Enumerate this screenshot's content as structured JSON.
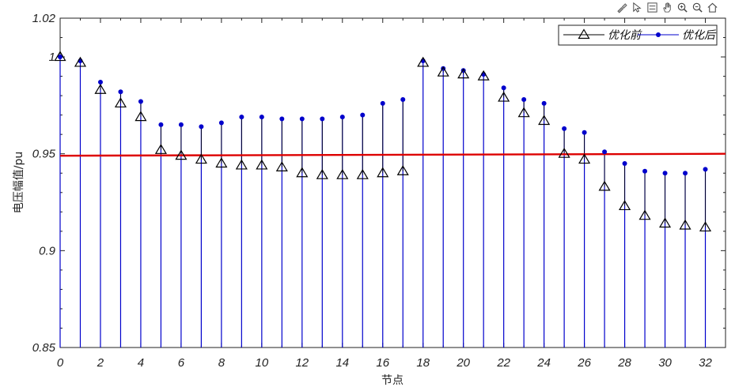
{
  "toolbar": {
    "icons": [
      "brush-icon",
      "data-cursor-icon",
      "legend-icon",
      "pan-hand-icon",
      "zoom-in-icon",
      "zoom-out-icon",
      "home-icon"
    ]
  },
  "colors": {
    "before": "#000000",
    "after": "#0000CC",
    "threshold": "#DD0000"
  },
  "chart_data": {
    "type": "stem",
    "title": "",
    "xlabel": "节点",
    "ylabel": "电压幅值/pu",
    "xlim": [
      0,
      33
    ],
    "ylim": [
      0.85,
      1.02
    ],
    "xticks": [
      "0",
      "2",
      "4",
      "6",
      "8",
      "10",
      "12",
      "14",
      "16",
      "18",
      "20",
      "22",
      "24",
      "26",
      "28",
      "30",
      "32"
    ],
    "yticks": [
      "0.85",
      "0.9",
      "0.95",
      "1",
      "1.02"
    ],
    "legend_position": "top-right",
    "x": [
      0,
      1,
      2,
      3,
      4,
      5,
      6,
      7,
      8,
      9,
      10,
      11,
      12,
      13,
      14,
      15,
      16,
      17,
      18,
      19,
      20,
      21,
      22,
      23,
      24,
      25,
      26,
      27,
      28,
      29,
      30,
      31,
      32
    ],
    "series": [
      {
        "name": "优化前",
        "marker": "triangle",
        "values": [
          1.0,
          0.997,
          0.983,
          0.976,
          0.969,
          0.952,
          0.949,
          0.947,
          0.945,
          0.944,
          0.944,
          0.943,
          0.94,
          0.939,
          0.939,
          0.939,
          0.94,
          0.941,
          0.997,
          0.992,
          0.991,
          0.99,
          0.979,
          0.971,
          0.967,
          0.95,
          0.947,
          0.933,
          0.923,
          0.918,
          0.914,
          0.913,
          0.912
        ]
      },
      {
        "name": "优化后",
        "marker": "dot",
        "values": [
          1.0,
          0.998,
          0.987,
          0.982,
          0.977,
          0.965,
          0.965,
          0.964,
          0.966,
          0.969,
          0.969,
          0.968,
          0.968,
          0.968,
          0.969,
          0.97,
          0.976,
          0.978,
          0.998,
          0.994,
          0.993,
          0.991,
          0.984,
          0.978,
          0.976,
          0.963,
          0.961,
          0.951,
          0.945,
          0.941,
          0.94,
          0.94,
          0.942
        ]
      }
    ],
    "threshold": {
      "y_start": 0.949,
      "y_end": 0.95
    }
  }
}
